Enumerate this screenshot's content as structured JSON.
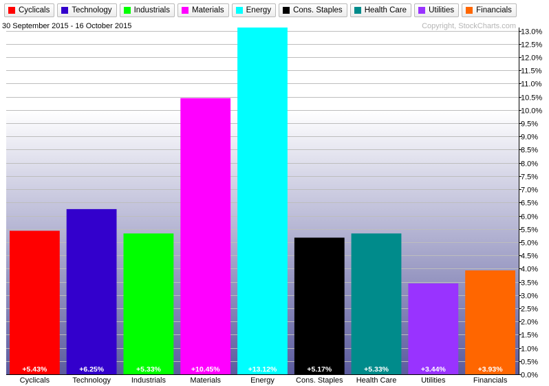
{
  "legend": [
    {
      "label": "Cyclicals",
      "color": "#ff0000"
    },
    {
      "label": "Technology",
      "color": "#3300cc"
    },
    {
      "label": "Industrials",
      "color": "#00ff00"
    },
    {
      "label": "Materials",
      "color": "#ff00ff"
    },
    {
      "label": "Energy",
      "color": "#00ffff"
    },
    {
      "label": "Cons. Staples",
      "color": "#000000"
    },
    {
      "label": "Health Care",
      "color": "#008b8b"
    },
    {
      "label": "Utilities",
      "color": "#9933ff"
    },
    {
      "label": "Financials",
      "color": "#ff6600"
    }
  ],
  "header": {
    "date_range": "30 September 2015 - 16 October 2015",
    "copyright": "Copyright, StockCharts.com"
  },
  "chart_data": {
    "type": "bar",
    "categories": [
      "Cyclicals",
      "Technology",
      "Industrials",
      "Materials",
      "Energy",
      "Cons. Staples",
      "Health Care",
      "Utilities",
      "Financials"
    ],
    "values": [
      5.43,
      6.25,
      5.33,
      10.45,
      13.12,
      5.17,
      5.33,
      3.44,
      3.93
    ],
    "value_labels": [
      "+5.43%",
      "+6.25%",
      "+5.33%",
      "+10.45%",
      "+13.12%",
      "+5.17%",
      "+5.33%",
      "+3.44%",
      "+3.93%"
    ],
    "value_label_colors": [
      "#ffffff",
      "#ffffff",
      "#ffffff",
      "#ffffff",
      "#ffffff",
      "#ffffff",
      "#ffffff",
      "#ffffff",
      "#ffffff"
    ],
    "colors": [
      "#ff0000",
      "#3300cc",
      "#00ff00",
      "#ff00ff",
      "#00ffff",
      "#000000",
      "#008b8b",
      "#9933ff",
      "#ff6600"
    ],
    "ylim": [
      0,
      13.12
    ],
    "ytick_step": 0.5,
    "ytick_format": "percent-1dp",
    "y_axis_side": "right",
    "grid": true
  }
}
